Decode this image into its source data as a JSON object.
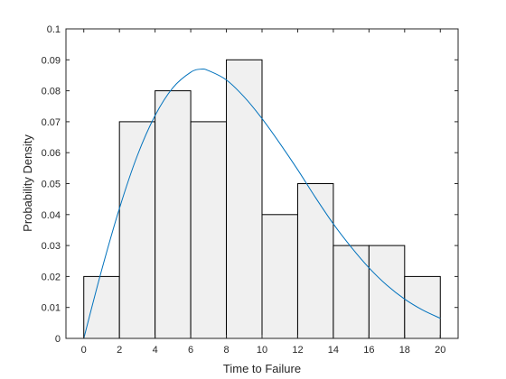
{
  "chart_data": {
    "type": "bar",
    "subtype": "histogram with fitted density curve",
    "xlabel": "Time to Failure",
    "ylabel": "Probability Density",
    "xlim": [
      -1,
      21
    ],
    "ylim": [
      0,
      0.1
    ],
    "xticks": [
      0,
      2,
      4,
      6,
      8,
      10,
      12,
      14,
      16,
      18,
      20
    ],
    "xtick_labels": [
      "0",
      "2",
      "4",
      "6",
      "8",
      "10",
      "12",
      "14",
      "16",
      "18",
      "20"
    ],
    "yticks": [
      0,
      0.01,
      0.02,
      0.03,
      0.04,
      0.05,
      0.06,
      0.07,
      0.08,
      0.09,
      0.1
    ],
    "ytick_labels": [
      "0",
      "0.01",
      "0.02",
      "0.03",
      "0.04",
      "0.05",
      "0.06",
      "0.07",
      "0.08",
      "0.09",
      "0.1"
    ],
    "grid": false,
    "bins": [
      {
        "x0": 0,
        "x1": 2,
        "value": 0.02
      },
      {
        "x0": 2,
        "x1": 4,
        "value": 0.07
      },
      {
        "x0": 4,
        "x1": 6,
        "value": 0.08
      },
      {
        "x0": 6,
        "x1": 8,
        "value": 0.07
      },
      {
        "x0": 8,
        "x1": 10,
        "value": 0.09
      },
      {
        "x0": 10,
        "x1": 12,
        "value": 0.04
      },
      {
        "x0": 12,
        "x1": 14,
        "value": 0.05
      },
      {
        "x0": 14,
        "x1": 16,
        "value": 0.03
      },
      {
        "x0": 16,
        "x1": 18,
        "value": 0.03
      },
      {
        "x0": 18,
        "x1": 20,
        "value": 0.02
      }
    ],
    "curve": {
      "x": [
        0,
        1,
        2,
        3,
        4,
        5,
        6,
        6.6,
        7,
        8,
        9,
        10,
        11,
        12,
        13,
        14,
        15,
        16,
        17,
        18,
        19,
        20
      ],
      "y": [
        0,
        0.022,
        0.042,
        0.059,
        0.072,
        0.081,
        0.086,
        0.087,
        0.0865,
        0.0835,
        0.078,
        0.071,
        0.063,
        0.0545,
        0.0455,
        0.037,
        0.0295,
        0.0228,
        0.0172,
        0.0127,
        0.0092,
        0.0065
      ]
    },
    "colors": {
      "bar_fill": "#f0f0f0",
      "bar_edge": "#000000",
      "curve": "#0072bd",
      "axes": "#262626"
    }
  }
}
